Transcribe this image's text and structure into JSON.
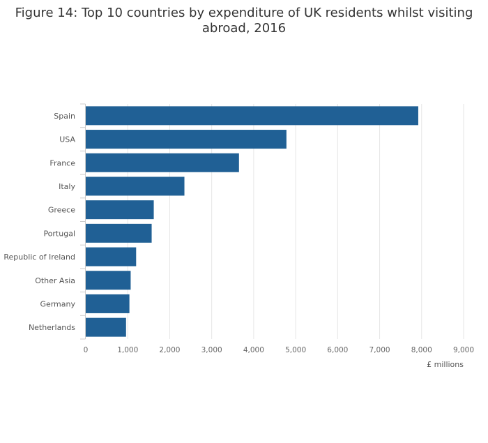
{
  "chart_data": {
    "type": "bar",
    "orientation": "horizontal",
    "title": "Figure 14: Top 10 countries by expenditure of UK residents whilst visiting abroad, 2016",
    "xlabel": "£ millions",
    "ylabel": "",
    "categories": [
      "Spain",
      "USA",
      "France",
      "Italy",
      "Greece",
      "Portugal",
      "Republic of Ireland",
      "Other Asia",
      "Germany",
      "Netherlands"
    ],
    "values": [
      7920,
      4780,
      3650,
      2350,
      1620,
      1570,
      1200,
      1070,
      1040,
      960
    ],
    "xlim": [
      0,
      9000
    ],
    "xticks": [
      0,
      1000,
      2000,
      3000,
      4000,
      5000,
      6000,
      7000,
      8000,
      9000
    ],
    "xtick_labels": [
      "0",
      "1,000",
      "2,000",
      "3,000",
      "4,000",
      "5,000",
      "6,000",
      "7,000",
      "8,000",
      "9,000"
    ],
    "grid": "vertical",
    "legend": "none",
    "bar_color": "#206095",
    "grid_color": "#e6e6e6",
    "axis_color": "#cccccc"
  }
}
